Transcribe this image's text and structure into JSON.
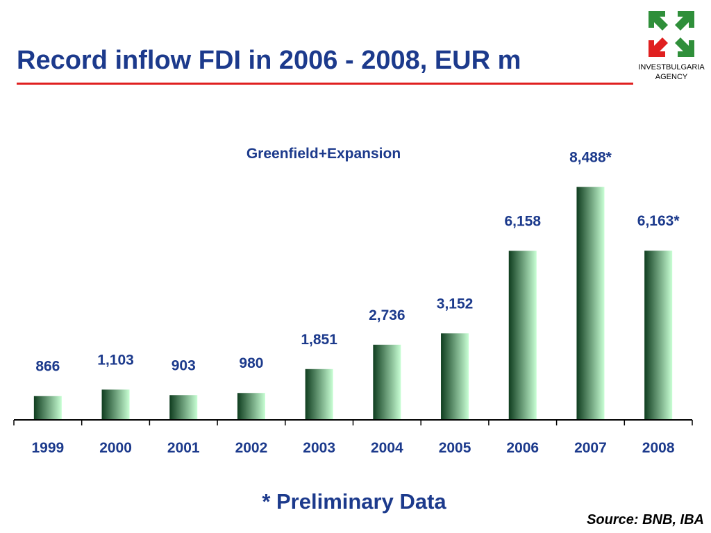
{
  "header": {
    "title": "Record inflow FDI in 2006 - 2008, EUR m"
  },
  "logo": {
    "line1": "INVESTBULGARIA",
    "line2": "AGENCY",
    "colors": {
      "green": "#2f8f3a",
      "red": "#e02020"
    }
  },
  "footer": {
    "note": "* Preliminary Data",
    "source": "Source: BNB, IBA"
  },
  "colors": {
    "title": "#1c3a8c",
    "rule": "#e02020",
    "bar_dark": "#0f3d1f",
    "bar_light": "#c8ffd4"
  },
  "chart_data": {
    "type": "bar",
    "annotation": "Greenfield+Expansion",
    "categories": [
      "1999",
      "2000",
      "2001",
      "2002",
      "2003",
      "2004",
      "2005",
      "2006",
      "2007",
      "2008"
    ],
    "values": [
      866,
      1103,
      903,
      980,
      1851,
      2736,
      3152,
      6158,
      8488,
      6163
    ],
    "value_labels": [
      "866",
      "1,103",
      "903",
      "980",
      "1,851",
      "2,736",
      "3,152",
      "6,158",
      "8,488*",
      "6,163*"
    ],
    "ylim": [
      0,
      9000
    ],
    "grid": false,
    "legend": "none"
  }
}
